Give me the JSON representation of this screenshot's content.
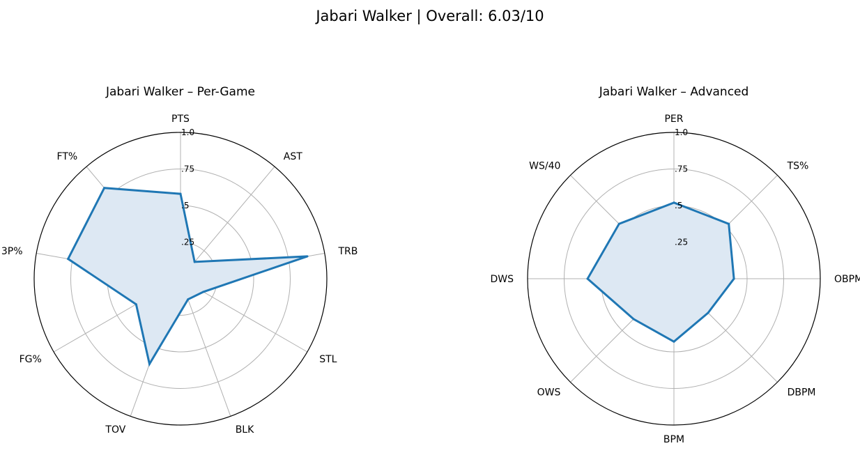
{
  "figure": {
    "suptitle": "Jabari Walker | Overall: 6.03/10"
  },
  "chart_data": [
    {
      "type": "radar",
      "title": "Jabari Walker – Per-Game",
      "rlim": [
        0,
        1
      ],
      "rticks": [
        0.25,
        0.5,
        0.75,
        1.0
      ],
      "rtick_labels": [
        ".25",
        ".5",
        ".75",
        "1.0"
      ],
      "grid": true,
      "categories": [
        "PTS",
        "AST",
        "TRB",
        "STL",
        "BLK",
        "TOV",
        "FG%",
        "3P%",
        "FT%"
      ],
      "values": [
        0.58,
        0.15,
        0.88,
        0.18,
        0.15,
        0.62,
        0.35,
        0.78,
        0.81
      ],
      "line_color": "#1f77b4",
      "fill_color": "#dde8f3"
    },
    {
      "type": "radar",
      "title": "Jabari Walker – Advanced",
      "rlim": [
        0,
        1
      ],
      "rticks": [
        0.25,
        0.5,
        0.75,
        1.0
      ],
      "rtick_labels": [
        ".25",
        ".5",
        ".75",
        "1.0"
      ],
      "grid": true,
      "categories": [
        "PER",
        "TS%",
        "OBPM",
        "DBPM",
        "BPM",
        "OWS",
        "DWS",
        "WS/40"
      ],
      "values": [
        0.52,
        0.53,
        0.41,
        0.33,
        0.43,
        0.39,
        0.59,
        0.53
      ],
      "line_color": "#1f77b4",
      "fill_color": "#dde8f3"
    }
  ]
}
